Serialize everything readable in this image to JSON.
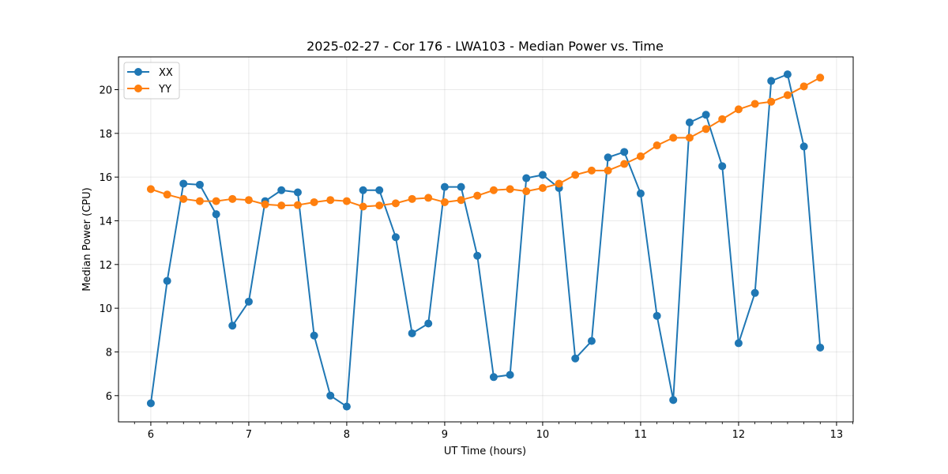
{
  "chart_data": {
    "type": "line",
    "title": "2025-02-27 - Cor 176 - LWA103 - Median Power vs. Time",
    "xlabel": "UT Time (hours)",
    "ylabel": "Median Power (CPU)",
    "xlim": [
      5.67,
      13.17
    ],
    "ylim": [
      4.8,
      21.5
    ],
    "xticks": [
      6,
      7,
      8,
      9,
      10,
      11,
      12,
      13
    ],
    "yticks": [
      6,
      8,
      10,
      12,
      14,
      16,
      18,
      20
    ],
    "grid": true,
    "legend_position": "top-left",
    "x": [
      6.0,
      6.167,
      6.333,
      6.5,
      6.667,
      6.833,
      7.0,
      7.167,
      7.333,
      7.5,
      7.667,
      7.833,
      8.0,
      8.167,
      8.333,
      8.5,
      8.667,
      8.833,
      9.0,
      9.167,
      9.333,
      9.5,
      9.667,
      9.833,
      10.0,
      10.167,
      10.333,
      10.5,
      10.667,
      10.833,
      11.0,
      11.167,
      11.333,
      11.5,
      11.667,
      11.833,
      12.0,
      12.167,
      12.333,
      12.5,
      12.667,
      12.833
    ],
    "series": [
      {
        "name": "XX",
        "color": "#1f77b4",
        "values": [
          5.65,
          11.25,
          15.7,
          15.65,
          14.3,
          9.2,
          10.3,
          14.9,
          15.4,
          15.3,
          8.75,
          6.0,
          5.5,
          15.4,
          15.4,
          13.25,
          8.85,
          9.3,
          15.55,
          15.55,
          12.4,
          6.85,
          6.95,
          15.95,
          16.1,
          15.5,
          7.7,
          8.5,
          16.9,
          17.15,
          15.25,
          9.65,
          5.8,
          18.5,
          18.85,
          16.5,
          8.4,
          10.7,
          20.4,
          20.7,
          17.4,
          8.2
        ]
      },
      {
        "name": "YY",
        "color": "#ff7f0e",
        "values": [
          15.45,
          15.2,
          15.0,
          14.9,
          14.9,
          15.0,
          14.95,
          14.75,
          14.7,
          14.72,
          14.85,
          14.95,
          14.9,
          14.65,
          14.7,
          14.8,
          15.0,
          15.05,
          14.85,
          14.95,
          15.15,
          15.4,
          15.45,
          15.35,
          15.5,
          15.7,
          16.1,
          16.3,
          16.3,
          16.6,
          16.95,
          17.45,
          17.8,
          17.8,
          18.2,
          18.65,
          19.1,
          19.35,
          19.45,
          19.75,
          20.15,
          20.55
        ]
      }
    ]
  }
}
